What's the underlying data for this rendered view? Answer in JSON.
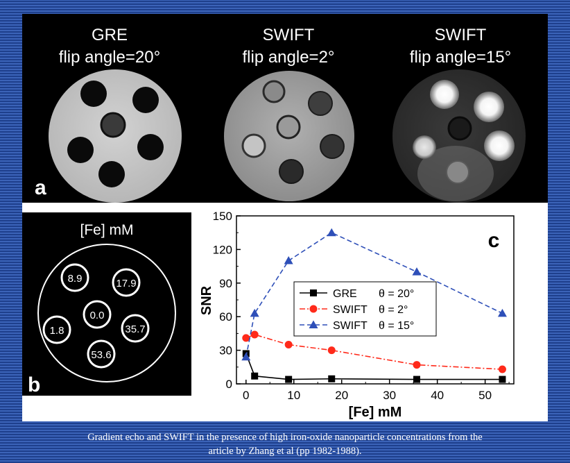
{
  "panel_a": {
    "label": "a",
    "images": [
      {
        "title_line1": "GRE",
        "title_line2": "flip angle=20°"
      },
      {
        "title_line1": "SWIFT",
        "title_line2": "flip angle=2°"
      },
      {
        "title_line1": "SWIFT",
        "title_line2": "flip angle=15°"
      }
    ]
  },
  "panel_b": {
    "label": "b",
    "title": "[Fe] mM",
    "wells": [
      "8.9",
      "17.9",
      "0.0",
      "1.8",
      "35.7",
      "53.6"
    ]
  },
  "chart_data": {
    "type": "line",
    "panel_label": "c",
    "xlabel": "[Fe] mM",
    "ylabel": "SNR",
    "xlim": [
      -2,
      56
    ],
    "ylim": [
      0,
      150
    ],
    "xticks": [
      0,
      10,
      20,
      30,
      40,
      50
    ],
    "yticks": [
      0,
      30,
      60,
      90,
      120,
      150
    ],
    "x": [
      0,
      1.8,
      8.9,
      17.9,
      35.7,
      53.6
    ],
    "series": [
      {
        "name": "GRE",
        "theta": "θ = 20°",
        "values": [
          27,
          7,
          4,
          4.5,
          4,
          4
        ],
        "color": "#000000",
        "marker": "square",
        "line": "solid"
      },
      {
        "name": "SWIFT",
        "theta": "θ = 2°",
        "values": [
          41,
          44,
          35,
          30,
          17,
          13
        ],
        "color": "#ff2a1a",
        "marker": "circle",
        "line": "dashdot"
      },
      {
        "name": "SWIFT",
        "theta": "θ = 15°",
        "values": [
          24,
          63,
          110,
          135,
          100,
          63
        ],
        "color": "#2e4fb8",
        "marker": "triangle",
        "line": "dashed"
      }
    ],
    "legend_position": "center"
  },
  "caption": {
    "line1": "Gradient echo and SWIFT in the presence of high iron-oxide nanoparticle concentrations from the",
    "line2": "article by Zhang et al (pp 1982-1988)."
  }
}
